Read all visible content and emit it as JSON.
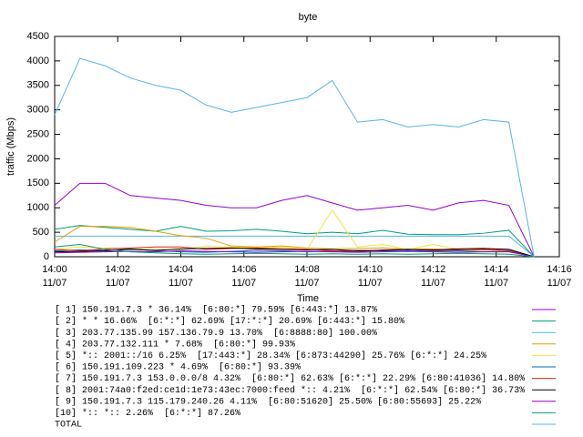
{
  "chart_data": {
    "type": "line",
    "title": "byte",
    "y_label": "traffic (Mbps)",
    "x_label": "Time",
    "x": [
      0,
      0.8,
      1.6,
      2.4,
      3.2,
      4.0,
      4.8,
      5.6,
      6.4,
      7.2,
      8.0,
      8.8,
      9.6,
      10.4,
      11.2,
      12.0,
      12.8,
      13.6,
      14.4,
      15.2
    ],
    "xlim": [
      0,
      16
    ],
    "xticks": [
      {
        "value": 0,
        "label": "14:00\n11/07"
      },
      {
        "value": 2,
        "label": "14:02\n11/07"
      },
      {
        "value": 4,
        "label": "14:04\n11/07"
      },
      {
        "value": 6,
        "label": "14:06\n11/07"
      },
      {
        "value": 8,
        "label": "14:08\n11/07"
      },
      {
        "value": 10,
        "label": "14:10\n11/07"
      },
      {
        "value": 12,
        "label": "14:12\n11/07"
      },
      {
        "value": 14,
        "label": "14:14\n11/07"
      },
      {
        "value": 16,
        "label": "14:16\n11/07"
      }
    ],
    "ylim": [
      0,
      4500
    ],
    "yticks": [
      0,
      500,
      1000,
      1500,
      2000,
      2500,
      3000,
      3500,
      4000,
      4500
    ],
    "grid": false,
    "series": [
      {
        "name": "[ 1] 150.191.7.3 * 36.14%  [6:80:*] 79.59% [6:443:*] 13.87%",
        "color": "#9400d3",
        "values": [
          1050,
          1500,
          1500,
          1250,
          1200,
          1150,
          1050,
          1000,
          1000,
          1150,
          1250,
          1100,
          950,
          1000,
          1050,
          950,
          1100,
          1150,
          1050,
          0
        ]
      },
      {
        "name": "[ 2] * * 16.66%  [6:*:*] 62.69% [17:*:*] 20.69% [6:443:*] 15.80%",
        "color": "#009e73",
        "values": [
          560,
          640,
          600,
          560,
          520,
          620,
          520,
          530,
          560,
          520,
          470,
          500,
          470,
          540,
          460,
          450,
          450,
          480,
          540,
          0
        ]
      },
      {
        "name": "[ 3] 203.77.135.99 157.136.79.9 13.70%  [6:8888:80] 100.00%",
        "color": "#56b4e9",
        "values": [
          420,
          420,
          420,
          420,
          420,
          420,
          420,
          420,
          420,
          420,
          420,
          420,
          420,
          420,
          420,
          420,
          420,
          420,
          420,
          0
        ]
      },
      {
        "name": "[ 4] 203.77.132.111 * 7.68%  [6:80:*] 99.93%",
        "color": "#e69f00",
        "values": [
          300,
          620,
          620,
          600,
          520,
          430,
          380,
          220,
          200,
          220,
          180,
          160,
          170,
          180,
          150,
          160,
          130,
          140,
          120,
          0
        ]
      },
      {
        "name": "[ 5] *:: 2001::/16 6.25%  [17:443:*] 28.34% [6:873:44290] 25.76% [6:*:*] 24.25%",
        "color": "#f0e442",
        "values": [
          150,
          200,
          180,
          160,
          150,
          140,
          220,
          200,
          180,
          200,
          150,
          950,
          200,
          250,
          150,
          250,
          150,
          100,
          120,
          0
        ]
      },
      {
        "name": "[ 6] 150.191.109.223 * 4.69%  [6:80:*] 93.39%",
        "color": "#0072b2",
        "values": [
          120,
          140,
          130,
          160,
          120,
          100,
          90,
          110,
          130,
          120,
          100,
          110,
          130,
          120,
          130,
          110,
          120,
          100,
          110,
          0
        ]
      },
      {
        "name": "[ 7] 150.191.7.3 153.0.0.0/8 4.32%  [6:80:*] 62.63% [6:*:*] 22.29% [6:80:41036] 14.80%",
        "color": "#e51e10",
        "values": [
          150,
          120,
          160,
          180,
          200,
          200,
          150,
          170,
          180,
          160,
          150,
          120,
          100,
          140,
          150,
          130,
          140,
          150,
          130,
          0
        ]
      },
      {
        "name": "[ 8] 2001:74a0:f2ed:ce1d:1e73:43ec:7000:feed *:: 4.21%  [6:*:*] 62.54% [6:80:*] 36.73%",
        "color": "#000000",
        "values": [
          100,
          110,
          120,
          150,
          130,
          160,
          170,
          180,
          160,
          150,
          140,
          150,
          120,
          130,
          150,
          140,
          160,
          170,
          150,
          0
        ]
      },
      {
        "name": "[ 9] 150.191.7.3 115.179.240.26 4.11%  [6:80:51620] 25.50% [6:80:55693] 25.22%",
        "color": "#9400d3",
        "values": [
          80,
          90,
          100,
          110,
          100,
          120,
          110,
          100,
          90,
          100,
          110,
          100,
          90,
          100,
          110,
          100,
          90,
          100,
          100,
          0
        ]
      },
      {
        "name": "[10] *:: *:: 2.26%  [6:*:*] 87.26%",
        "color": "#009e73",
        "values": [
          200,
          250,
          150,
          100,
          80,
          60,
          50,
          60,
          70,
          60,
          50,
          60,
          50,
          60,
          50,
          60,
          70,
          60,
          50,
          0
        ]
      },
      {
        "name": "TOTAL",
        "color": "#56b4e9",
        "values": [
          2900,
          4050,
          3900,
          3650,
          3500,
          3400,
          3100,
          2950,
          3050,
          3150,
          3250,
          3600,
          2750,
          2800,
          2650,
          2700,
          2650,
          2800,
          2750,
          0
        ]
      }
    ]
  }
}
